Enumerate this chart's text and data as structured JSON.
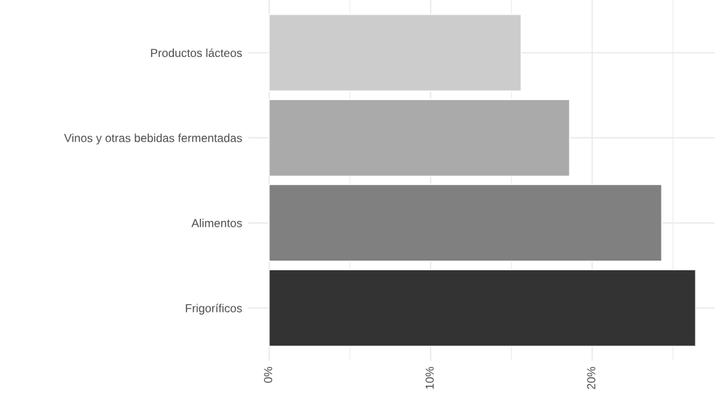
{
  "chart_data": {
    "type": "bar",
    "orientation": "horizontal",
    "categories": [
      "Productos lácteos",
      "Vinos y otras bebidas fermentadas",
      "Alimentos",
      "Frigoríficos"
    ],
    "values": [
      15.6,
      18.6,
      24.3,
      26.4
    ],
    "colors": [
      "#cccccc",
      "#aaaaaa",
      "#808080",
      "#333333"
    ],
    "xlim": [
      -1.3,
      27.6
    ],
    "xticks": [
      {
        "value": 0,
        "label": "0%"
      },
      {
        "value": 5,
        "label": null
      },
      {
        "value": 10,
        "label": "10%"
      },
      {
        "value": 15,
        "label": null
      },
      {
        "value": 20,
        "label": "20%"
      },
      {
        "value": 25,
        "label": null
      }
    ],
    "grid": true,
    "legend": false
  }
}
